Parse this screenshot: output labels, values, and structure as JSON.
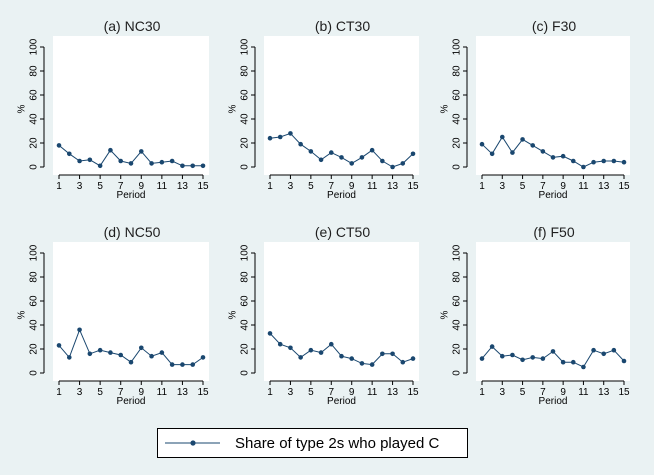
{
  "colors": {
    "background": "#eaf2f3",
    "panel": "#ffffff",
    "series": "#1a476f",
    "text": "#000000"
  },
  "legend": {
    "label": "Share of type 2s who played C",
    "position": "bottom"
  },
  "chart_data": [
    {
      "type": "line",
      "title": "(a) NC30",
      "xlabel": "Period",
      "ylabel": "%",
      "x": [
        1,
        2,
        3,
        4,
        5,
        6,
        7,
        8,
        9,
        10,
        11,
        12,
        13,
        14,
        15
      ],
      "series": [
        {
          "name": "Share of type 2s who played C",
          "values": [
            18,
            11,
            5,
            6,
            1,
            14,
            5,
            3,
            13,
            3,
            4,
            5,
            1,
            1,
            1
          ]
        }
      ],
      "xticks": [
        1,
        3,
        5,
        7,
        9,
        11,
        13,
        15
      ],
      "yticks": [
        0,
        20,
        40,
        60,
        80,
        100
      ],
      "ylim": [
        0,
        100
      ]
    },
    {
      "type": "line",
      "title": "(b) CT30",
      "xlabel": "Period",
      "ylabel": "%",
      "x": [
        1,
        2,
        3,
        4,
        5,
        6,
        7,
        8,
        9,
        10,
        11,
        12,
        13,
        14,
        15
      ],
      "series": [
        {
          "name": "Share of type 2s who played C",
          "values": [
            24,
            25,
            28,
            19,
            13,
            6,
            12,
            8,
            3,
            8,
            14,
            5,
            0,
            3,
            11
          ]
        }
      ],
      "xticks": [
        1,
        3,
        5,
        7,
        9,
        11,
        13,
        15
      ],
      "yticks": [
        0,
        20,
        40,
        60,
        80,
        100
      ],
      "ylim": [
        0,
        100
      ]
    },
    {
      "type": "line",
      "title": "(c) F30",
      "xlabel": "Period",
      "ylabel": "%",
      "x": [
        1,
        2,
        3,
        4,
        5,
        6,
        7,
        8,
        9,
        10,
        11,
        12,
        13,
        14,
        15
      ],
      "series": [
        {
          "name": "Share of type 2s who played C",
          "values": [
            19,
            11,
            25,
            12,
            23,
            18,
            13,
            8,
            9,
            5,
            0,
            4,
            5,
            5,
            4
          ]
        }
      ],
      "xticks": [
        1,
        3,
        5,
        7,
        9,
        11,
        13,
        15
      ],
      "yticks": [
        0,
        20,
        40,
        60,
        80,
        100
      ],
      "ylim": [
        0,
        100
      ]
    },
    {
      "type": "line",
      "title": "(d) NC50",
      "xlabel": "Period",
      "ylabel": "%",
      "x": [
        1,
        2,
        3,
        4,
        5,
        6,
        7,
        8,
        9,
        10,
        11,
        12,
        13,
        14,
        15
      ],
      "series": [
        {
          "name": "Share of type 2s who played C",
          "values": [
            23,
            13,
            36,
            16,
            19,
            17,
            15,
            9,
            21,
            14,
            17,
            7,
            7,
            7,
            13
          ]
        }
      ],
      "xticks": [
        1,
        3,
        5,
        7,
        9,
        11,
        13,
        15
      ],
      "yticks": [
        0,
        20,
        40,
        60,
        80,
        100
      ],
      "ylim": [
        0,
        100
      ]
    },
    {
      "type": "line",
      "title": "(e) CT50",
      "xlabel": "Period",
      "ylabel": "%",
      "x": [
        1,
        2,
        3,
        4,
        5,
        6,
        7,
        8,
        9,
        10,
        11,
        12,
        13,
        14,
        15
      ],
      "series": [
        {
          "name": "Share of type 2s who played C",
          "values": [
            33,
            24,
            21,
            13,
            19,
            17,
            24,
            14,
            12,
            8,
            7,
            16,
            16,
            9,
            12
          ]
        }
      ],
      "xticks": [
        1,
        3,
        5,
        7,
        9,
        11,
        13,
        15
      ],
      "yticks": [
        0,
        20,
        40,
        60,
        80,
        100
      ],
      "ylim": [
        0,
        100
      ]
    },
    {
      "type": "line",
      "title": "(f) F50",
      "xlabel": "Period",
      "ylabel": "%",
      "x": [
        1,
        2,
        3,
        4,
        5,
        6,
        7,
        8,
        9,
        10,
        11,
        12,
        13,
        14,
        15
      ],
      "series": [
        {
          "name": "Share of type 2s who played C",
          "values": [
            12,
            22,
            14,
            15,
            11,
            13,
            12,
            18,
            9,
            9,
            5,
            19,
            16,
            19,
            10
          ]
        }
      ],
      "xticks": [
        1,
        3,
        5,
        7,
        9,
        11,
        13,
        15
      ],
      "yticks": [
        0,
        20,
        40,
        60,
        80,
        100
      ],
      "ylim": [
        0,
        100
      ]
    }
  ]
}
